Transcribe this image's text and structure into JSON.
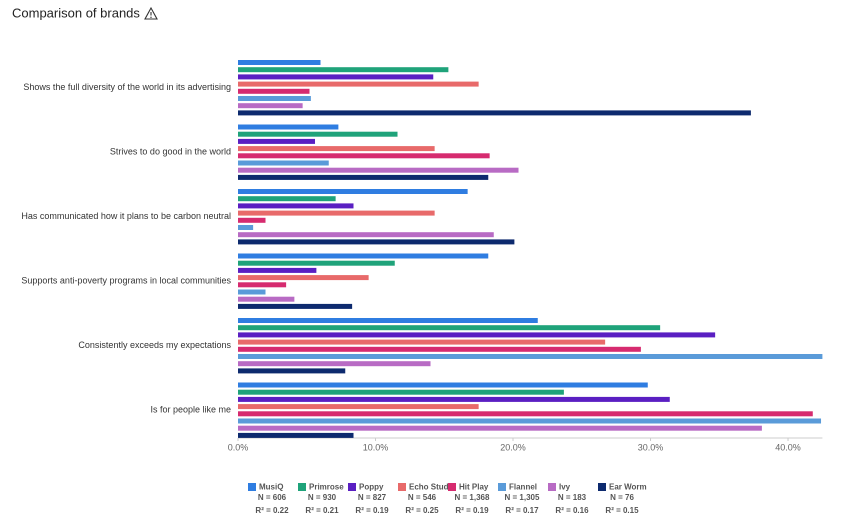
{
  "chart_data": {
    "type": "bar",
    "orientation": "horizontal",
    "title": "Comparison of brands",
    "categories": [
      "Shows the full diversity of the world in its advertising",
      "Strives to do good in the world",
      "Has communicated how it plans to be carbon neutral",
      "Supports anti-poverty programs in local communities",
      "Consistently exceeds my expectations",
      "Is for people like me"
    ],
    "series": [
      {
        "name": "MusiQ",
        "n_label": "N = 606",
        "r2_label": "R² = 0.22",
        "color": "#2f7de1",
        "values": [
          6.0,
          7.3,
          16.7,
          18.2,
          21.8,
          29.8
        ]
      },
      {
        "name": "Primrose",
        "n_label": "N = 930",
        "r2_label": "R² = 0.21",
        "color": "#1fa37a",
        "values": [
          15.3,
          11.6,
          7.1,
          11.4,
          30.7,
          23.7
        ]
      },
      {
        "name": "Poppy",
        "n_label": "N = 827",
        "r2_label": "R² = 0.19",
        "color": "#5a1fc2",
        "values": [
          14.2,
          5.6,
          8.4,
          5.7,
          34.7,
          31.4
        ]
      },
      {
        "name": "Echo Studio",
        "n_label": "N = 546",
        "r2_label": "R² = 0.25",
        "color": "#e86a6a",
        "values": [
          17.5,
          14.3,
          14.3,
          9.5,
          26.7,
          17.5
        ]
      },
      {
        "name": "Hit Play",
        "n_label": "N = 1,368",
        "r2_label": "R² = 0.19",
        "color": "#d62b6f",
        "values": [
          5.2,
          18.3,
          2.0,
          3.5,
          29.3,
          41.8
        ]
      },
      {
        "name": "Flannel",
        "n_label": "N = 1,305",
        "r2_label": "R² = 0.17",
        "color": "#5a9bd9",
        "values": [
          5.3,
          6.6,
          1.1,
          2.0,
          42.5,
          42.4
        ]
      },
      {
        "name": "Ivy",
        "n_label": "N = 183",
        "r2_label": "R² = 0.16",
        "color": "#b86bc4",
        "values": [
          4.7,
          20.4,
          18.6,
          4.1,
          14.0,
          38.1
        ]
      },
      {
        "name": "Ear Worm",
        "n_label": "N = 76",
        "r2_label": "R² = 0.15",
        "color": "#0d2a6e",
        "values": [
          37.3,
          18.2,
          20.1,
          8.3,
          7.8,
          8.4
        ]
      }
    ],
    "xlim": [
      0,
      42.5
    ],
    "xticks": [
      {
        "value": 0,
        "label": "0.0%"
      },
      {
        "value": 10,
        "label": "10.0%"
      },
      {
        "value": 20,
        "label": "20.0%"
      },
      {
        "value": 30,
        "label": "30.0%"
      },
      {
        "value": 40,
        "label": "40.0%"
      }
    ],
    "grid": false,
    "legend": "bottom"
  }
}
